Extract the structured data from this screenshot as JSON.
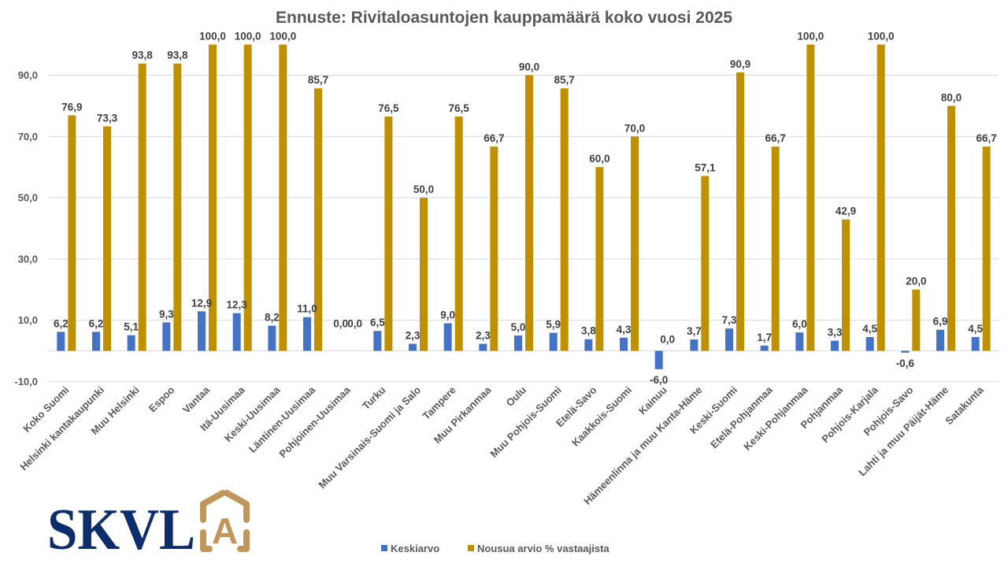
{
  "chart_data": {
    "type": "bar",
    "title": "Ennuste: Rivitaloasuntojen kauppamäärä koko vuosi 2025",
    "xlabel": "",
    "ylabel": "",
    "ylim": [
      -10,
      100
    ],
    "yticks": [
      -10,
      10,
      30,
      50,
      70,
      90
    ],
    "ytick_labels": [
      "-10,0",
      "10,0",
      "30,0",
      "50,0",
      "70,0",
      "90,0"
    ],
    "grid": true,
    "legend_position": "bottom",
    "categories": [
      "Koko Suomi",
      "Helsinki kantakaupunki",
      "Muu Helsinki",
      "Espoo",
      "Vantaa",
      "Itä-Uusimaa",
      "Keski-Uusimaa",
      "Läntinen-Uusimaa",
      "Pohjoinen-Uusimaa",
      "Turku",
      "Muu Varsinais-Suomi ja Salo",
      "Tampere",
      "Muu Pirkanmaa",
      "Oulu",
      "Muu Pohjois-Suomi",
      "Etelä-Savo",
      "Kaakkois-Suomi",
      "Kainuu",
      "Hämeenlinna ja muu Kanta-Häme",
      "Keski-Suomi",
      "Etelä-Pohjanmaa",
      "Keski-Pohjanmaa",
      "Pohjanmaa",
      "Pohjois-Karjala",
      "Pohjois-Savo",
      "Lahti ja muu Päijät-Häme",
      "Satakunta"
    ],
    "series": [
      {
        "name": "Keskiarvo",
        "color": "#4472c4",
        "values": [
          6.2,
          6.2,
          5.1,
          9.3,
          12.9,
          12.3,
          8.2,
          11.0,
          0.0,
          6.5,
          2.3,
          9.0,
          2.3,
          5.0,
          5.9,
          3.8,
          4.3,
          -6.0,
          3.7,
          7.3,
          1.7,
          6.0,
          3.3,
          4.5,
          -0.6,
          6.9,
          4.5
        ],
        "labels": [
          "6,2",
          "6,2",
          "5,1",
          "9,3",
          "12,9",
          "12,3",
          "8,2",
          "11,0",
          "0,0",
          "6,5",
          "2,3",
          "9,0",
          "2,3",
          "5,0",
          "5,9",
          "3,8",
          "4,3",
          "-6,0",
          "3,7",
          "7,3",
          "1,7",
          "6,0",
          "3,3",
          "4,5",
          "-0,6",
          "6,9",
          "4,5"
        ]
      },
      {
        "name": "Nousua arvio % vastaajista",
        "color": "#bf9000",
        "values": [
          76.9,
          73.3,
          93.8,
          93.8,
          100.0,
          100.0,
          100.0,
          85.7,
          0.0,
          76.5,
          50.0,
          76.5,
          66.7,
          90.0,
          85.7,
          60.0,
          70.0,
          0.0,
          57.1,
          90.9,
          66.7,
          100.0,
          42.9,
          100.0,
          20.0,
          80.0,
          66.7
        ],
        "labels": [
          "76,9",
          "73,3",
          "93,8",
          "93,8",
          "100,0",
          "100,0",
          "100,0",
          "85,7",
          "0,0",
          "76,5",
          "50,0",
          "76,5",
          "66,7",
          "90,0",
          "85,7",
          "60,0",
          "70,0",
          "0,0",
          "57,1",
          "90,9",
          "66,7",
          "100,0",
          "42,9",
          "100,0",
          "20,0",
          "80,0",
          "66,7"
        ]
      }
    ]
  },
  "logo": {
    "text": "SKVL",
    "emblem_letter": "A",
    "text_color": "#0d2d6b",
    "emblem_color": "#c1965a"
  }
}
